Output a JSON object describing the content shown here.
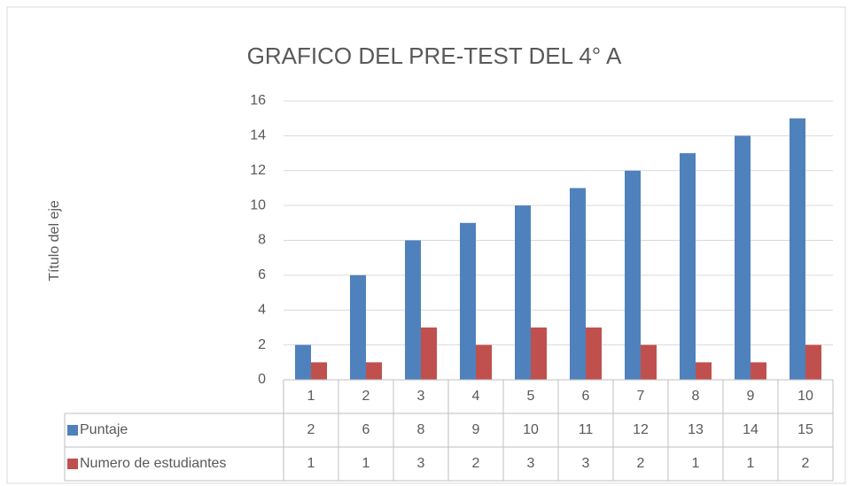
{
  "chart_data": {
    "type": "bar",
    "title": "GRAFICO DEL PRE-TEST DEL 4° A",
    "y_label": "Título del eje",
    "categories": [
      "1",
      "2",
      "3",
      "4",
      "5",
      "6",
      "7",
      "8",
      "9",
      "10"
    ],
    "series": [
      {
        "name": "Puntaje",
        "color": "#4f81bd",
        "values": [
          2,
          6,
          8,
          9,
          10,
          11,
          12,
          13,
          14,
          15
        ]
      },
      {
        "name": "Numero de estudiantes",
        "color": "#c0504d",
        "values": [
          1,
          1,
          3,
          2,
          3,
          3,
          2,
          1,
          1,
          2
        ]
      }
    ],
    "ylim": [
      0,
      16
    ],
    "yticks": [
      0,
      2,
      4,
      6,
      8,
      10,
      12,
      14,
      16
    ],
    "grid": true,
    "data_table": true
  }
}
